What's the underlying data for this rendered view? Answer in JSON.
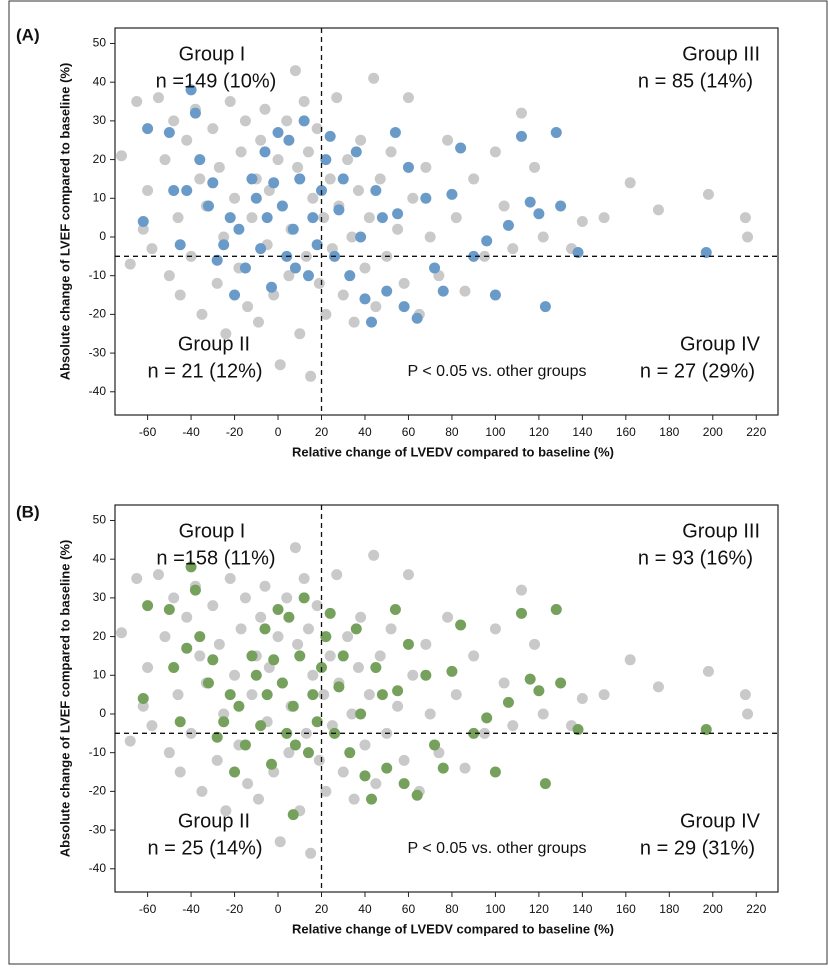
{
  "chart_data": [
    {
      "type": "scatter",
      "panel_label": "(A)",
      "xlabel": "Relative change of LVEDV compared to baseline (%)",
      "ylabel": "Absolute change of LVEF compared to baseline (%)",
      "annotations": [
        "Group I",
        "n =149 (10%)",
        "Group III",
        "n = 85 (14%)",
        "Group II",
        "n = 21 (12%)",
        "P < 0.05 vs. other groups",
        "Group IV",
        "n = 27 (29%)"
      ],
      "xlim": [
        -75,
        230
      ],
      "ylim": [
        -46,
        54
      ],
      "xticks": [
        -60,
        -40,
        -20,
        0,
        20,
        40,
        60,
        80,
        100,
        120,
        140,
        160,
        180,
        200,
        220
      ],
      "yticks": [
        -40,
        -30,
        -20,
        -10,
        0,
        10,
        20,
        30,
        40,
        50
      ],
      "vline": 20,
      "hline": -5,
      "series": [
        {
          "color": "#c9c9c9",
          "x": [
            -72,
            -68,
            -65,
            -62,
            -60,
            -58,
            -55,
            -52,
            -50,
            -48,
            -46,
            -45,
            -42,
            -40,
            -38,
            -36,
            -35,
            -33,
            -30,
            -28,
            -27,
            -25,
            -24,
            -22,
            -20,
            -18,
            -17,
            -15,
            -14,
            -12,
            -10,
            -9,
            -8,
            -6,
            -5,
            -4,
            -2,
            0,
            1,
            2,
            4,
            5,
            6,
            8,
            9,
            10,
            12,
            13,
            14,
            15,
            16,
            18,
            19,
            21,
            22,
            24,
            25,
            27,
            28,
            30,
            32,
            34,
            35,
            37,
            38,
            40,
            42,
            44,
            45,
            47,
            50,
            52,
            55,
            58,
            60,
            62,
            65,
            68,
            70,
            74,
            78,
            82,
            86,
            90,
            95,
            100,
            104,
            108,
            112,
            118,
            122,
            128,
            135,
            140,
            150,
            162,
            175,
            198,
            215,
            216
          ],
          "y": [
            21,
            -7,
            35,
            2,
            12,
            -3,
            36,
            20,
            -10,
            30,
            5,
            -15,
            25,
            -5,
            33,
            15,
            -20,
            8,
            28,
            -12,
            18,
            0,
            -25,
            35,
            10,
            -8,
            22,
            30,
            -18,
            5,
            15,
            -22,
            25,
            33,
            -2,
            12,
            -15,
            20,
            -33,
            8,
            30,
            -10,
            2,
            43,
            18,
            -25,
            35,
            -5,
            22,
            -36,
            10,
            28,
            -12,
            5,
            -20,
            15,
            -3,
            36,
            8,
            -15,
            20,
            0,
            -22,
            12,
            25,
            -8,
            5,
            41,
            -18,
            15,
            -5,
            22,
            2,
            -12,
            36,
            10,
            -20,
            18,
            0,
            -10,
            25,
            5,
            -14,
            15,
            -5,
            22,
            8,
            -3,
            32,
            18,
            0,
            27,
            -3,
            4,
            5,
            14,
            7,
            11,
            5,
            0
          ]
        },
        {
          "color": "#6a9bc8",
          "x": [
            -62,
            -60,
            -50,
            -48,
            -45,
            -42,
            -40,
            -38,
            -36,
            -32,
            -30,
            -28,
            -25,
            -22,
            -20,
            -18,
            -15,
            -12,
            -10,
            -8,
            -6,
            -5,
            -3,
            -2,
            0,
            2,
            4,
            5,
            7,
            8,
            10,
            12,
            14,
            16,
            18,
            20,
            22,
            24,
            26,
            28,
            30,
            33,
            36,
            38,
            40,
            43,
            45,
            48,
            50,
            54,
            55,
            58,
            60,
            64,
            68,
            72,
            76,
            80,
            84,
            90,
            96,
            100,
            106,
            112,
            116,
            120,
            123,
            128,
            130,
            138,
            197
          ],
          "y": [
            4,
            28,
            27,
            12,
            -2,
            12,
            38,
            32,
            20,
            8,
            14,
            -6,
            -2,
            5,
            -15,
            2,
            -8,
            15,
            10,
            -3,
            22,
            5,
            -13,
            14,
            27,
            8,
            -5,
            25,
            2,
            -8,
            15,
            30,
            -10,
            5,
            -2,
            12,
            20,
            26,
            -5,
            7,
            15,
            -10,
            22,
            0,
            -16,
            -22,
            12,
            5,
            -14,
            27,
            6,
            -18,
            18,
            -21,
            10,
            -8,
            -14,
            11,
            23,
            -5,
            -1,
            -15,
            3,
            26,
            9,
            6,
            -18,
            27,
            8,
            -4,
            -4
          ]
        }
      ]
    },
    {
      "type": "scatter",
      "panel_label": "(B)",
      "xlabel": "Relative change of LVEDV compared to baseline (%)",
      "ylabel": "Absolute change of LVEF compared to baseline (%)",
      "annotations": [
        "Group I",
        "n =158 (11%)",
        "Group III",
        "n = 93 (16%)",
        "Group II",
        "n = 25 (14%)",
        "P < 0.05 vs. other groups",
        "Group IV",
        "n = 29 (31%)"
      ],
      "xlim": [
        -75,
        230
      ],
      "ylim": [
        -46,
        54
      ],
      "xticks": [
        -60,
        -40,
        -20,
        0,
        20,
        40,
        60,
        80,
        100,
        120,
        140,
        160,
        180,
        200,
        220
      ],
      "yticks": [
        -40,
        -30,
        -20,
        -10,
        0,
        10,
        20,
        30,
        40,
        50
      ],
      "vline": 20,
      "hline": -5,
      "series": [
        {
          "color": "#c9c9c9",
          "x": [
            -72,
            -68,
            -65,
            -62,
            -60,
            -58,
            -55,
            -52,
            -50,
            -48,
            -46,
            -45,
            -42,
            -40,
            -38,
            -36,
            -35,
            -33,
            -30,
            -28,
            -27,
            -25,
            -24,
            -22,
            -20,
            -18,
            -17,
            -15,
            -14,
            -12,
            -10,
            -9,
            -8,
            -6,
            -5,
            -4,
            -2,
            0,
            1,
            2,
            4,
            5,
            6,
            8,
            9,
            10,
            12,
            13,
            14,
            15,
            16,
            18,
            19,
            21,
            22,
            24,
            25,
            27,
            28,
            30,
            32,
            34,
            35,
            37,
            38,
            40,
            42,
            44,
            45,
            47,
            50,
            52,
            55,
            58,
            60,
            62,
            65,
            68,
            70,
            74,
            78,
            82,
            86,
            90,
            95,
            100,
            104,
            108,
            112,
            118,
            122,
            128,
            135,
            140,
            150,
            162,
            175,
            198,
            215,
            216
          ],
          "y": [
            21,
            -7,
            35,
            2,
            12,
            -3,
            36,
            20,
            -10,
            30,
            5,
            -15,
            25,
            -5,
            33,
            15,
            -20,
            8,
            28,
            -12,
            18,
            0,
            -25,
            35,
            10,
            -8,
            22,
            30,
            -18,
            5,
            15,
            -22,
            25,
            33,
            -2,
            12,
            -15,
            20,
            -33,
            8,
            30,
            -10,
            2,
            43,
            18,
            -25,
            35,
            -5,
            22,
            -36,
            10,
            28,
            -12,
            5,
            -20,
            15,
            -3,
            36,
            8,
            -15,
            20,
            0,
            -22,
            12,
            25,
            -8,
            5,
            41,
            -18,
            15,
            -5,
            22,
            2,
            -12,
            36,
            10,
            -20,
            18,
            0,
            -10,
            25,
            5,
            -14,
            15,
            -5,
            22,
            8,
            -3,
            32,
            18,
            0,
            27,
            -3,
            4,
            5,
            14,
            7,
            11,
            5,
            0
          ]
        },
        {
          "color": "#76a15d",
          "x": [
            -62,
            -60,
            -50,
            -48,
            -45,
            -42,
            -40,
            -38,
            -36,
            -32,
            -30,
            -28,
            -25,
            -22,
            -20,
            -18,
            -15,
            -12,
            -10,
            -8,
            -6,
            -5,
            -3,
            -2,
            0,
            2,
            4,
            5,
            7,
            7,
            8,
            10,
            12,
            14,
            16,
            18,
            20,
            22,
            24,
            26,
            28,
            30,
            33,
            36,
            38,
            40,
            43,
            45,
            48,
            50,
            54,
            55,
            58,
            60,
            64,
            68,
            72,
            76,
            80,
            84,
            90,
            96,
            100,
            106,
            112,
            116,
            120,
            123,
            128,
            130,
            138,
            197
          ],
          "y": [
            4,
            28,
            27,
            12,
            -2,
            17,
            38,
            32,
            20,
            8,
            14,
            -6,
            -2,
            5,
            -15,
            2,
            -8,
            15,
            10,
            -3,
            22,
            5,
            -13,
            14,
            27,
            8,
            -5,
            25,
            2,
            -26,
            -8,
            15,
            30,
            -10,
            5,
            -2,
            12,
            20,
            26,
            -5,
            7,
            15,
            -10,
            22,
            0,
            -16,
            -22,
            12,
            5,
            -14,
            27,
            6,
            -18,
            18,
            -21,
            10,
            -8,
            -14,
            11,
            23,
            -5,
            -1,
            -15,
            3,
            26,
            9,
            6,
            -18,
            27,
            8,
            -4,
            -4
          ]
        }
      ]
    }
  ]
}
